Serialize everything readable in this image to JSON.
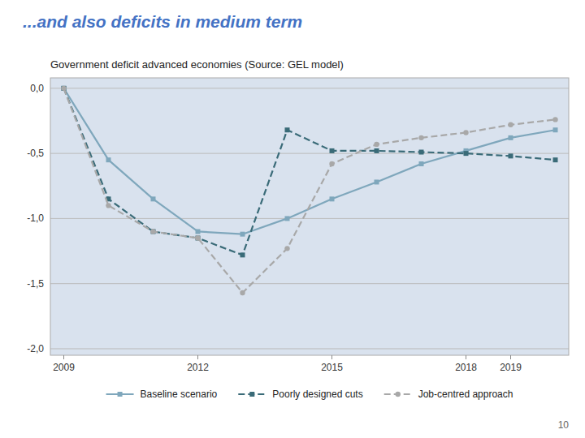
{
  "chart_data": {
    "type": "line",
    "title": "...and also deficits in medium term",
    "subtitle": "Government deficit advanced economies (Source: GEL model)",
    "x": [
      2009,
      2010,
      2011,
      2012,
      2013,
      2014,
      2015,
      2016,
      2017,
      2018,
      2019,
      2020
    ],
    "series": [
      {
        "name": "Baseline scenario",
        "color": "#7FA7BC",
        "marker": "square",
        "line_style": "solid",
        "values": [
          0.0,
          -0.55,
          -0.85,
          -1.1,
          -1.12,
          -1.0,
          -0.85,
          -0.72,
          -0.58,
          -0.48,
          -0.38,
          -0.32
        ]
      },
      {
        "name": "Poorly designed cuts",
        "color": "#3A6B78",
        "marker": "square",
        "line_style": "dashed",
        "values": [
          0.0,
          -0.85,
          -1.1,
          -1.15,
          -1.28,
          -0.32,
          -0.48,
          -0.48,
          -0.49,
          -0.5,
          -0.52,
          -0.55
        ]
      },
      {
        "name": "Job-centred approach",
        "color": "#A8A8A8",
        "marker": "circle",
        "line_style": "dashed",
        "values": [
          0.0,
          -0.9,
          -1.1,
          -1.15,
          -1.57,
          -1.23,
          -0.58,
          -0.43,
          -0.38,
          -0.34,
          -0.28,
          -0.24
        ]
      }
    ],
    "xlim": [
      2008.7,
      2020.3
    ],
    "xticks": [
      2009,
      2012,
      2015,
      2018,
      2019
    ],
    "ylim": [
      -2.05,
      0.08
    ],
    "yticks": [
      {
        "value": 0.0,
        "label": "0,0"
      },
      {
        "value": -0.5,
        "label": "-0,5"
      },
      {
        "value": -1.0,
        "label": "-1,0"
      },
      {
        "value": -1.5,
        "label": "-1,5"
      },
      {
        "value": -2.0,
        "label": "-2,0"
      }
    ],
    "grid": true,
    "legend": "bottom",
    "annotations": [
      {
        "text": "10"
      }
    ]
  }
}
